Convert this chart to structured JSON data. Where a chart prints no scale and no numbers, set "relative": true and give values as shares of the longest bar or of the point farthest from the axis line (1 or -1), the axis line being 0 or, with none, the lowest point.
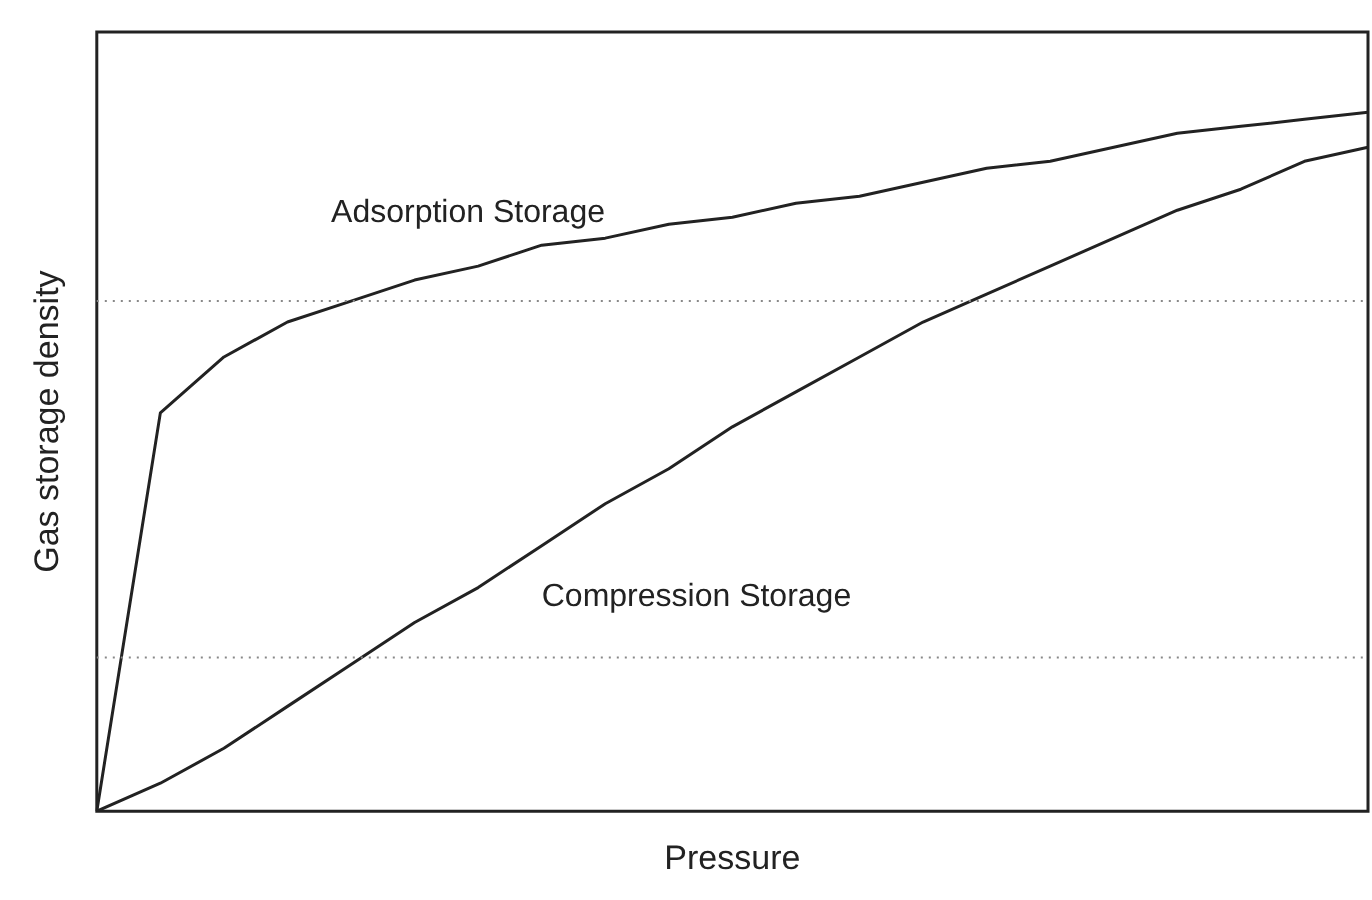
{
  "chart_data": {
    "type": "line",
    "relative": true,
    "xlabel": "Pressure",
    "ylabel": "Gas storage density",
    "categories": [
      null,
      null,
      null,
      null,
      null,
      null,
      null,
      null,
      null,
      null,
      null,
      null,
      null,
      null,
      null,
      null,
      null,
      null,
      null,
      null,
      null
    ],
    "series": [
      {
        "name": "Adsorption Storage",
        "color": "#222222",
        "values": [
          0,
          0.57,
          0.65,
          0.7,
          0.73,
          0.76,
          0.78,
          0.81,
          0.82,
          0.84,
          0.85,
          0.87,
          0.88,
          0.9,
          0.92,
          0.93,
          0.95,
          0.97,
          0.98,
          0.99,
          1
        ]
      },
      {
        "name": "Compression Storage",
        "color": "#222222",
        "values": [
          0,
          0.04,
          0.09,
          0.15,
          0.21,
          0.27,
          0.32,
          0.38,
          0.44,
          0.49,
          0.55,
          0.6,
          0.65,
          0.7,
          0.74,
          0.78,
          0.82,
          0.86,
          0.89,
          0.93,
          0.95
        ]
      }
    ],
    "ref_lines": [
      {
        "axis": "y",
        "value": 0.73,
        "line_style": "dotted",
        "color": "#888888"
      },
      {
        "axis": "y",
        "value": 0.22,
        "line_style": "dotted",
        "color": "#888888"
      }
    ],
    "marker": "none",
    "line_style": "solid",
    "grid": false,
    "legend": false
  }
}
